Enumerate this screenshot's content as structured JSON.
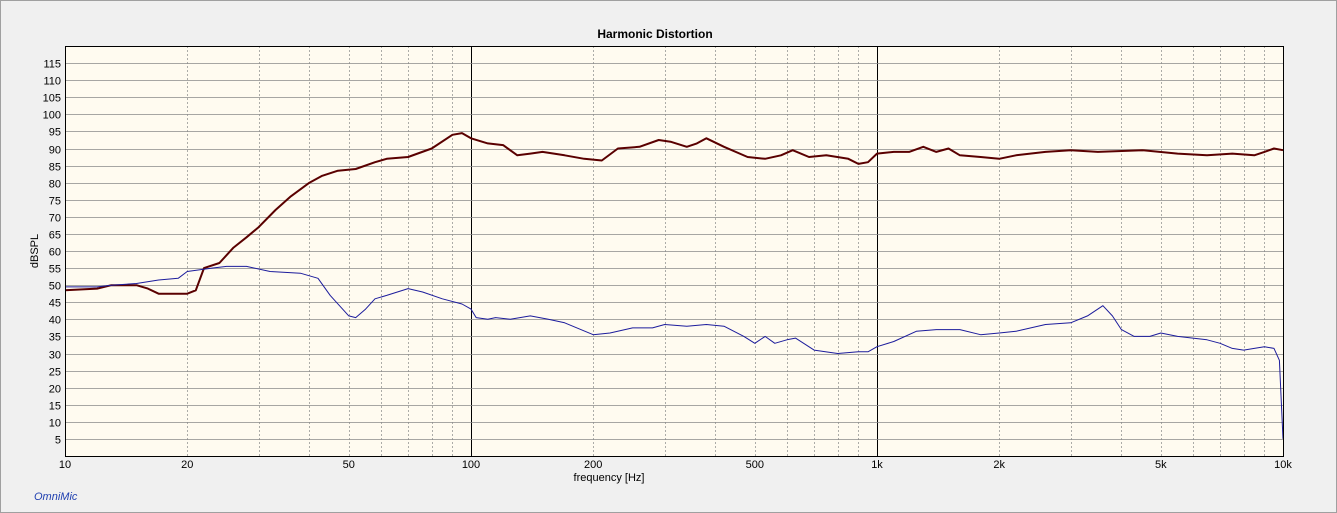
{
  "chart_data": {
    "type": "line",
    "title": "Harmonic Distortion",
    "xlabel": "frequency [Hz]",
    "ylabel": "dBSPL",
    "x_scale": "log",
    "xlim": [
      10,
      10000
    ],
    "ylim": [
      0,
      120
    ],
    "x_ticks": [
      {
        "value": 10,
        "label": "10"
      },
      {
        "value": 20,
        "label": "20"
      },
      {
        "value": 50,
        "label": "50"
      },
      {
        "value": 100,
        "label": "100"
      },
      {
        "value": 200,
        "label": "200"
      },
      {
        "value": 500,
        "label": "500"
      },
      {
        "value": 1000,
        "label": "1k"
      },
      {
        "value": 2000,
        "label": "2k"
      },
      {
        "value": 5000,
        "label": "5k"
      },
      {
        "value": 10000,
        "label": "10k"
      }
    ],
    "y_ticks": [
      5,
      10,
      15,
      20,
      25,
      30,
      35,
      40,
      45,
      50,
      55,
      60,
      65,
      70,
      75,
      80,
      85,
      90,
      95,
      100,
      105,
      110,
      115
    ],
    "grid": true,
    "background": "#fffbf0",
    "series": [
      {
        "color": "#5a0000",
        "line_width": 2,
        "points": [
          [
            10,
            48.5
          ],
          [
            12,
            49
          ],
          [
            13,
            50
          ],
          [
            15,
            50
          ],
          [
            16,
            49
          ],
          [
            17,
            47.5
          ],
          [
            18,
            47.5
          ],
          [
            19,
            47.5
          ],
          [
            20,
            47.5
          ],
          [
            21,
            48.5
          ],
          [
            22,
            55
          ],
          [
            24,
            56.5
          ],
          [
            26,
            61
          ],
          [
            28,
            64
          ],
          [
            30,
            67
          ],
          [
            33,
            72
          ],
          [
            36,
            76
          ],
          [
            40,
            80
          ],
          [
            43,
            82
          ],
          [
            47,
            83.5
          ],
          [
            52,
            84
          ],
          [
            58,
            86
          ],
          [
            62,
            87
          ],
          [
            70,
            87.5
          ],
          [
            80,
            90
          ],
          [
            90,
            94
          ],
          [
            95,
            94.5
          ],
          [
            100,
            93
          ],
          [
            110,
            91.5
          ],
          [
            120,
            91
          ],
          [
            130,
            88
          ],
          [
            140,
            88.5
          ],
          [
            150,
            89
          ],
          [
            170,
            88
          ],
          [
            190,
            87
          ],
          [
            210,
            86.5
          ],
          [
            230,
            90
          ],
          [
            260,
            90.5
          ],
          [
            290,
            92.5
          ],
          [
            310,
            92
          ],
          [
            340,
            90.5
          ],
          [
            360,
            91.5
          ],
          [
            380,
            93
          ],
          [
            420,
            90.5
          ],
          [
            480,
            87.5
          ],
          [
            530,
            87
          ],
          [
            580,
            88
          ],
          [
            620,
            89.5
          ],
          [
            680,
            87.5
          ],
          [
            750,
            88
          ],
          [
            850,
            87
          ],
          [
            900,
            85.5
          ],
          [
            950,
            86
          ],
          [
            1000,
            88.5
          ],
          [
            1100,
            89
          ],
          [
            1200,
            89
          ],
          [
            1300,
            90.5
          ],
          [
            1400,
            89
          ],
          [
            1500,
            90
          ],
          [
            1600,
            88
          ],
          [
            1800,
            87.5
          ],
          [
            2000,
            87
          ],
          [
            2200,
            88
          ],
          [
            2600,
            89
          ],
          [
            3000,
            89.5
          ],
          [
            3500,
            89
          ],
          [
            4500,
            89.5
          ],
          [
            5500,
            88.5
          ],
          [
            6500,
            88
          ],
          [
            7500,
            88.5
          ],
          [
            8500,
            88
          ],
          [
            9000,
            89
          ],
          [
            9500,
            90
          ],
          [
            10000,
            89.5
          ]
        ]
      },
      {
        "color": "#1c1c9c",
        "line_width": 1,
        "points": [
          [
            10,
            49.5
          ],
          [
            12,
            49.5
          ],
          [
            13,
            50
          ],
          [
            15,
            50.5
          ],
          [
            17,
            51.5
          ],
          [
            19,
            52
          ],
          [
            20,
            54
          ],
          [
            23,
            55
          ],
          [
            25,
            55.5
          ],
          [
            28,
            55.5
          ],
          [
            32,
            54
          ],
          [
            38,
            53.5
          ],
          [
            42,
            52
          ],
          [
            45,
            47
          ],
          [
            50,
            41
          ],
          [
            52,
            40.5
          ],
          [
            55,
            43
          ],
          [
            58,
            46
          ],
          [
            62,
            47
          ],
          [
            70,
            49
          ],
          [
            76,
            48
          ],
          [
            85,
            46
          ],
          [
            95,
            44.5
          ],
          [
            100,
            43
          ],
          [
            103,
            40.5
          ],
          [
            110,
            40
          ],
          [
            115,
            40.5
          ],
          [
            125,
            40
          ],
          [
            140,
            41
          ],
          [
            155,
            40
          ],
          [
            170,
            39
          ],
          [
            200,
            35.5
          ],
          [
            220,
            36
          ],
          [
            250,
            37.5
          ],
          [
            280,
            37.5
          ],
          [
            300,
            38.5
          ],
          [
            340,
            38
          ],
          [
            380,
            38.5
          ],
          [
            420,
            38
          ],
          [
            470,
            35
          ],
          [
            500,
            33
          ],
          [
            530,
            35
          ],
          [
            560,
            33
          ],
          [
            600,
            34
          ],
          [
            630,
            34.5
          ],
          [
            700,
            31
          ],
          [
            800,
            30
          ],
          [
            900,
            30.5
          ],
          [
            950,
            30.5
          ],
          [
            1000,
            32
          ],
          [
            1100,
            33.5
          ],
          [
            1250,
            36.5
          ],
          [
            1400,
            37
          ],
          [
            1600,
            37
          ],
          [
            1800,
            35.5
          ],
          [
            2000,
            36
          ],
          [
            2200,
            36.5
          ],
          [
            2600,
            38.5
          ],
          [
            3000,
            39
          ],
          [
            3300,
            41
          ],
          [
            3600,
            44
          ],
          [
            3800,
            41
          ],
          [
            4000,
            37
          ],
          [
            4300,
            35
          ],
          [
            4700,
            35
          ],
          [
            5000,
            36
          ],
          [
            5500,
            35
          ],
          [
            6500,
            34
          ],
          [
            7000,
            33
          ],
          [
            7500,
            31.5
          ],
          [
            8000,
            31
          ],
          [
            8500,
            31.5
          ],
          [
            9000,
            32
          ],
          [
            9500,
            31.5
          ],
          [
            9800,
            28
          ],
          [
            10000,
            5
          ]
        ]
      }
    ]
  },
  "branding": "OmniMic"
}
